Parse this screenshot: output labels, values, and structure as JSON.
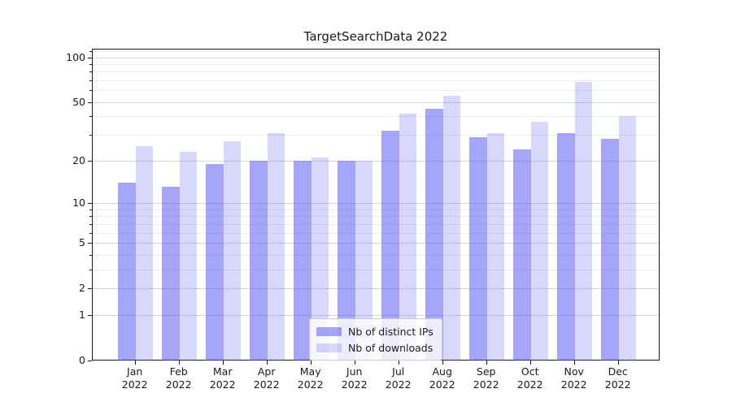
{
  "title": "TargetSearchData 2022",
  "colors": {
    "bar_ips": "rgba(70,70,240,0.48)",
    "bar_downloads": "rgba(70,70,240,0.21)",
    "grid_major": "#d8d8d8",
    "grid_minor": "#ececec",
    "axis": "#1a1a1a",
    "legend_border": "#cccccc",
    "legend_bg": "rgba(255,255,255,0.8)"
  },
  "chart_data": {
    "type": "bar",
    "title": "TargetSearchData 2022",
    "categories": [
      "Jan",
      "Feb",
      "Mar",
      "Apr",
      "May",
      "Jun",
      "Jul",
      "Aug",
      "Sep",
      "Oct",
      "Nov",
      "Dec"
    ],
    "category_year": "2022",
    "series": [
      {
        "name": "Nb of distinct IPs",
        "color": "rgba(70,70,240,0.48)",
        "values": [
          14,
          13,
          19,
          20,
          20,
          20,
          32,
          45,
          29,
          24,
          31,
          28
        ]
      },
      {
        "name": "Nb of downloads",
        "color": "rgba(70,70,240,0.21)",
        "values": [
          25,
          23,
          27,
          31,
          21,
          20,
          42,
          55,
          31,
          37,
          68,
          40
        ]
      }
    ],
    "xlabel": "",
    "ylabel": "",
    "yscale": "log1p",
    "ylim": [
      0,
      114
    ],
    "y_major_ticks": [
      0,
      1,
      2,
      5,
      10,
      20,
      50,
      100
    ],
    "y_minor_gridlines": [
      3,
      4,
      6,
      7,
      8,
      9,
      30,
      40,
      60,
      70,
      80,
      90,
      110
    ],
    "grid": "on",
    "legend_position": "lower center"
  }
}
